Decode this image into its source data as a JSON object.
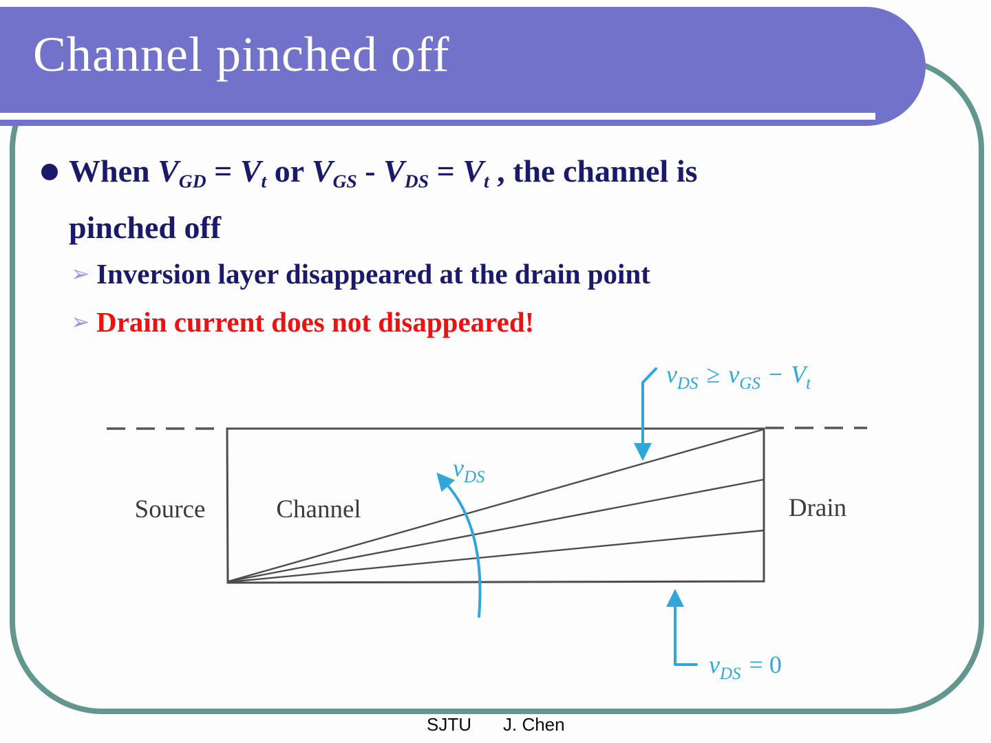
{
  "slide": {
    "title": "Channel pinched off",
    "footer_left": "SJTU",
    "footer_right": "J. Chen"
  },
  "colors": {
    "header-purple": "#7372CB",
    "frame-teal": "#649690",
    "text-navy": "#1A1A6B",
    "text-red": "#EE1111",
    "cyan-annotation": "#2FA7DB",
    "marker-lilac": "#9C9AE8",
    "diagram-line": "#4D4D4D",
    "diagram-text": "#3B3B3B"
  },
  "bullet": {
    "marker_glyph": "➢",
    "line1_parts": [
      {
        "t": "When ",
        "k": "p"
      },
      {
        "t": "V",
        "k": "v"
      },
      {
        "t": "GD",
        "k": "s"
      },
      {
        "t": " = ",
        "k": "p"
      },
      {
        "t": "V",
        "k": "v"
      },
      {
        "t": "t",
        "k": "s"
      },
      {
        "t": " or ",
        "k": "p"
      },
      {
        "t": "V",
        "k": "v"
      },
      {
        "t": "GS",
        "k": "s"
      },
      {
        "t": " - ",
        "k": "p"
      },
      {
        "t": "V",
        "k": "v"
      },
      {
        "t": "DS",
        "k": "s"
      },
      {
        "t": " = ",
        "k": "p"
      },
      {
        "t": "V",
        "k": "v"
      },
      {
        "t": "t",
        "k": "s"
      },
      {
        "t": " , the channel is",
        "k": "p"
      }
    ],
    "line2": "pinched off",
    "sub1": "Inversion layer disappeared at the drain point",
    "sub2": "Drain current does not disappeared!"
  },
  "diagram": {
    "labels": {
      "source": "Source",
      "channel": "Channel",
      "drain": "Drain"
    },
    "ann_top": {
      "v1": "v",
      "s1": "DS",
      "op": "≥",
      "v2": "v",
      "s2": "GS",
      "minus": "−",
      "v3": "V",
      "s3": "t"
    },
    "ann_arc": {
      "v": "v",
      "s": "DS"
    },
    "ann_bottom": {
      "v": "v",
      "s": "DS",
      "eq": "= 0"
    }
  }
}
